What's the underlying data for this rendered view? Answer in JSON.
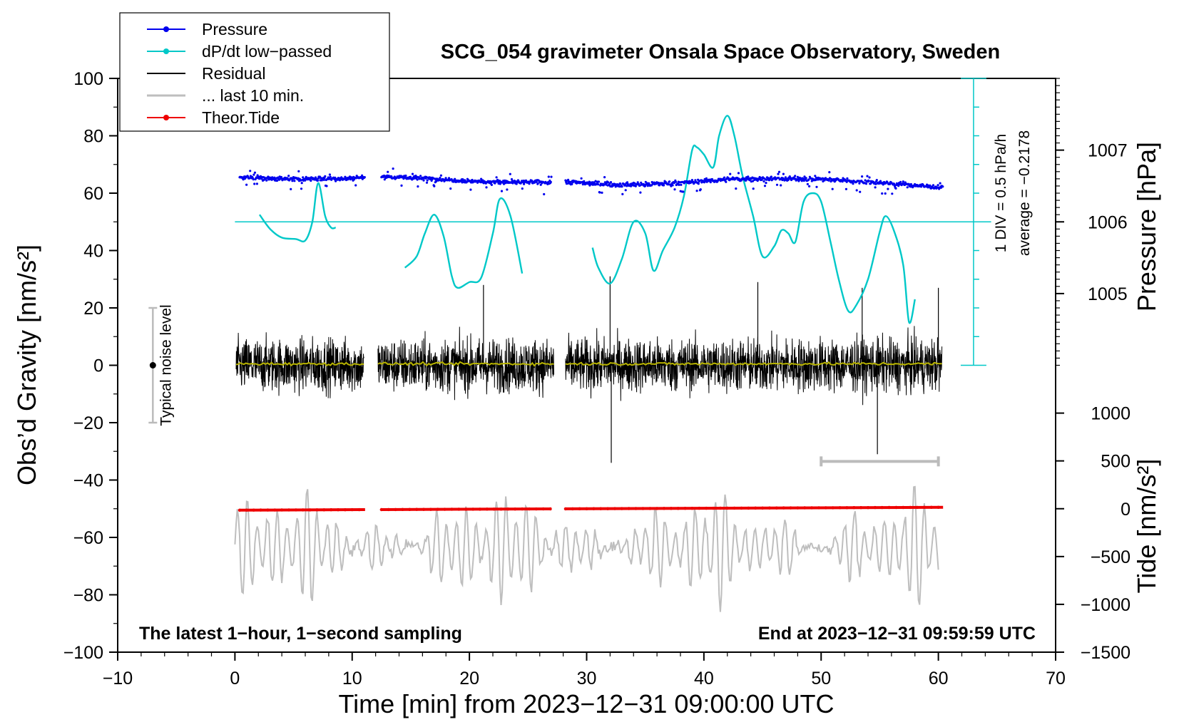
{
  "chart_data": {
    "type": "line",
    "title": "SCG_054 gravimeter Onsala Space Observatory, Sweden",
    "xlabel": "Time [min] from 2023−12−31 09:00:00 UTC",
    "ylabel_left": "Obs’d Gravity [nm/s²]",
    "ylabel_right_pressure": "Pressure [hPa]",
    "ylabel_right_tide": "Tide [nm/s²]",
    "xlim": [
      -10,
      70
    ],
    "ylim": [
      -100,
      100
    ],
    "x_ticks": [
      -10,
      0,
      10,
      20,
      30,
      40,
      50,
      60,
      70
    ],
    "x_tick_labels": [
      "−10",
      "0",
      "10",
      "20",
      "30",
      "40",
      "50",
      "60",
      "70"
    ],
    "y_ticks": [
      -100,
      -80,
      -60,
      -40,
      -20,
      0,
      20,
      40,
      60,
      80,
      100
    ],
    "y_tick_labels": [
      "−100",
      "−80",
      "−60",
      "−40",
      "−20",
      "0",
      "20",
      "40",
      "60",
      "80",
      "100"
    ],
    "pressure_axis": {
      "ticks": [
        1005,
        1006,
        1007
      ],
      "tick_labels": [
        "1005",
        "1006",
        "1007"
      ],
      "gravity_equiv": [
        25,
        50,
        75
      ]
    },
    "tide_axis": {
      "ticks": [
        -1500,
        -1000,
        -500,
        0,
        500,
        1000
      ],
      "tick_labels": [
        "−1500",
        "−1000",
        "−500",
        "0",
        "500",
        "1000"
      ],
      "gravity_equiv": [
        -100,
        -83.33,
        -66.67,
        -50,
        -33.33,
        -16.67
      ]
    },
    "legend": {
      "placement": "top-left",
      "entries": [
        {
          "label": "Pressure",
          "color": "#0000ee",
          "marker": true
        },
        {
          "label": "dP/dt low−passed",
          "color": "#00c8c8",
          "marker": true
        },
        {
          "label": "Residual",
          "color": "#000000",
          "marker": false
        },
        {
          "label": "... last 10 min.",
          "color": "#bebebe",
          "marker": false
        },
        {
          "label": "Theor.Tide",
          "color": "#ee0000",
          "marker": true
        }
      ]
    },
    "dpdt_scale": {
      "div_label": "1 DIV = 0.5 hPa/h",
      "average_label": "average = −0.2178",
      "reference_level": 50,
      "scale_x": 63,
      "scale_range": [
        0,
        100
      ]
    },
    "noise_bar": {
      "label": "Typical noise level",
      "x": -7,
      "center": 0,
      "range": [
        -20,
        20
      ]
    },
    "last10_bar": {
      "x": [
        50,
        60
      ],
      "y": -33.5
    },
    "annotations": {
      "bottom_left": "The latest 1−hour, 1−second sampling",
      "bottom_right": "End at 2023−12−31 09:59:59 UTC"
    },
    "gaps": [
      [
        11.0,
        12.2
      ],
      [
        27.2,
        28.2
      ]
    ],
    "series": [
      {
        "name": "Pressure",
        "color": "#0000ee",
        "segments": [
          [
            0.4,
            11.1
          ],
          [
            12.5,
            27.0
          ],
          [
            28.2,
            60.4
          ]
        ],
        "x": [
          0.4,
          5,
          10,
          11.1,
          12.5,
          17,
          22,
          27,
          28.2,
          33,
          38,
          42,
          46,
          50,
          55,
          60.4
        ],
        "y": [
          65.5,
          64.9,
          65.2,
          65.6,
          65.8,
          65.0,
          63.8,
          63.8,
          64.0,
          62.8,
          63.6,
          64.8,
          65.1,
          64.9,
          63.6,
          62.0
        ]
      },
      {
        "name": "dP/dt low-passed",
        "color": "#00c8c8",
        "segments": [
          {
            "x": [
              2.1,
              3.0,
              4.0,
              5.2,
              6.0,
              6.6,
              7.1,
              7.7,
              8.2,
              8.6
            ],
            "y": [
              52.5,
              47.5,
              44.5,
              44.0,
              43.5,
              50.0,
              63.5,
              52.0,
              48.0,
              48.0
            ]
          },
          {
            "x": [
              14.5,
              15.5,
              16.2,
              17.0,
              17.8,
              18.5,
              19.0,
              20.0,
              21.0,
              22.0,
              22.6,
              23.5,
              24.5
            ],
            "y": [
              34.0,
              38.0,
              46.0,
              52.5,
              45.0,
              31.0,
              27.0,
              29.0,
              30.5,
              46.0,
              58.0,
              52.0,
              32.0
            ]
          },
          {
            "x": [
              30.5,
              31.0,
              32.0,
              33.0,
              34.0,
              35.0,
              35.7,
              36.5,
              37.5,
              38.3,
              39.0,
              39.4,
              40.0,
              40.8,
              41.3,
              42.0,
              42.6,
              43.3,
              44.2,
              45.0,
              46.0,
              46.6,
              47.2,
              47.8,
              48.5,
              49.3,
              50.0,
              50.8,
              51.5,
              52.3,
              53.0,
              54.0,
              55.0,
              55.5,
              56.2,
              57.0,
              57.5,
              58.0
            ],
            "y": [
              41.0,
              34.0,
              28.5,
              37.0,
              50.0,
              46.0,
              33.0,
              40.0,
              48.0,
              59.0,
              75.0,
              76.0,
              73.5,
              69.0,
              80.0,
              87.0,
              80.0,
              66.0,
              52.0,
              38.0,
              41.5,
              47.0,
              46.0,
              43.0,
              57.0,
              60.0,
              57.0,
              43.0,
              30.0,
              19.0,
              21.0,
              30.0,
              46.5,
              52.0,
              47.0,
              35.0,
              15.0,
              23.0
            ]
          }
        ]
      },
      {
        "name": "Residual",
        "color": "#000000",
        "segments": [
          [
            0.1,
            11.0
          ],
          [
            12.2,
            27.2
          ],
          [
            28.2,
            60.3
          ]
        ],
        "amplitude": 12,
        "spikes": [
          [
            32.1,
            -34
          ],
          [
            32.0,
            31
          ],
          [
            54.8,
            -31
          ],
          [
            53.5,
            27
          ],
          [
            21.2,
            28
          ],
          [
            44.6,
            29
          ],
          [
            60.0,
            27
          ]
        ]
      },
      {
        "name": "Residual smoothed",
        "color": "#b8b400",
        "segments": [
          [
            0.1,
            11.0
          ],
          [
            12.2,
            27.2
          ],
          [
            28.2,
            60.3
          ]
        ],
        "y": 0.5
      },
      {
        "name": "... last 10 min.",
        "color": "#bebebe",
        "x_range": [
          0,
          60
        ],
        "y_range": [
          -92,
          -35
        ]
      },
      {
        "name": "Theor.Tide",
        "color": "#ee0000",
        "segments": [
          [
            0.4,
            11.1
          ],
          [
            12.5,
            27.0
          ],
          [
            28.2,
            60.4
          ]
        ],
        "x": [
          0.4,
          60.4
        ],
        "y": [
          -50.5,
          -49.5
        ]
      }
    ]
  }
}
